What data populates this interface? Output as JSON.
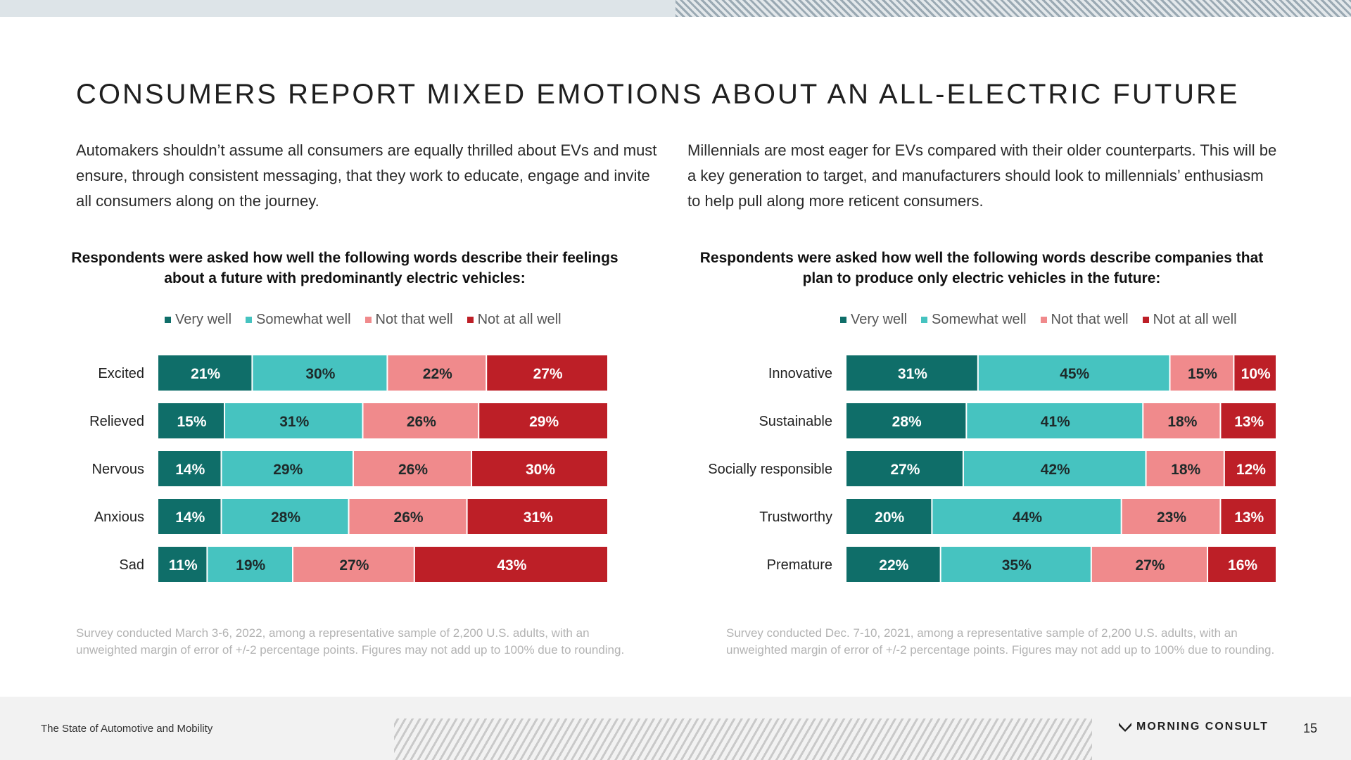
{
  "page": {
    "title": "CONSUMERS REPORT MIXED EMOTIONS ABOUT AN ALL-ELECTRIC FUTURE",
    "intro_left": "Automakers shouldn’t assume all consumers are equally thrilled about EVs and must ensure, through consistent messaging, that they work to educate, engage and invite all consumers along on the journey.",
    "intro_right": "Millennials are most eager for EVs compared with their older counterparts. This will be a key generation to target, and manufacturers should look to millennials’ enthusiasm to help pull along more reticent consumers.",
    "footer_text": "The State of Automotive and Mobility",
    "logo_text": "MORNING CONSULT",
    "page_number": "15"
  },
  "legend": {
    "labels": [
      "Very well",
      "Somewhat well",
      "Not that well",
      "Not at all well"
    ],
    "colors": [
      "#0f6e69",
      "#46c3c0",
      "#f08a8c",
      "#bd1f27"
    ]
  },
  "chart_data": [
    {
      "type": "bar",
      "stacked": true,
      "orientation": "horizontal",
      "title": "Respondents were asked how well the following words describe their feelings about a future with predominantly electric vehicles:",
      "categories": [
        "Excited",
        "Relieved",
        "Nervous",
        "Anxious",
        "Sad"
      ],
      "series": [
        {
          "name": "Very well",
          "values": [
            21,
            15,
            14,
            14,
            11
          ]
        },
        {
          "name": "Somewhat well",
          "values": [
            30,
            31,
            29,
            28,
            19
          ]
        },
        {
          "name": "Not that well",
          "values": [
            22,
            26,
            26,
            26,
            27
          ]
        },
        {
          "name": "Not at all well",
          "values": [
            27,
            29,
            30,
            31,
            43
          ]
        }
      ],
      "unit": "%",
      "footnote": "Survey conducted March 3-6, 2022, among a representative sample of 2,200 U.S. adults, with an unweighted margin of error of +/-2 percentage points. Figures may not add up to 100% due to rounding."
    },
    {
      "type": "bar",
      "stacked": true,
      "orientation": "horizontal",
      "title": "Respondents were asked how well the following words describe companies that plan to produce only electric vehicles in the future:",
      "categories": [
        "Innovative",
        "Sustainable",
        "Socially responsible",
        "Trustworthy",
        "Premature"
      ],
      "series": [
        {
          "name": "Very well",
          "values": [
            31,
            28,
            27,
            20,
            22
          ]
        },
        {
          "name": "Somewhat well",
          "values": [
            45,
            41,
            42,
            44,
            35
          ]
        },
        {
          "name": "Not that well",
          "values": [
            15,
            18,
            18,
            23,
            27
          ]
        },
        {
          "name": "Not at all well",
          "values": [
            10,
            13,
            12,
            13,
            16
          ]
        }
      ],
      "unit": "%",
      "footnote": "Survey conducted Dec. 7-10, 2021, among a representative sample of 2,200 U.S. adults, with an unweighted margin of error of +/-2 percentage points. Figures may not add up to 100% due to rounding."
    }
  ]
}
